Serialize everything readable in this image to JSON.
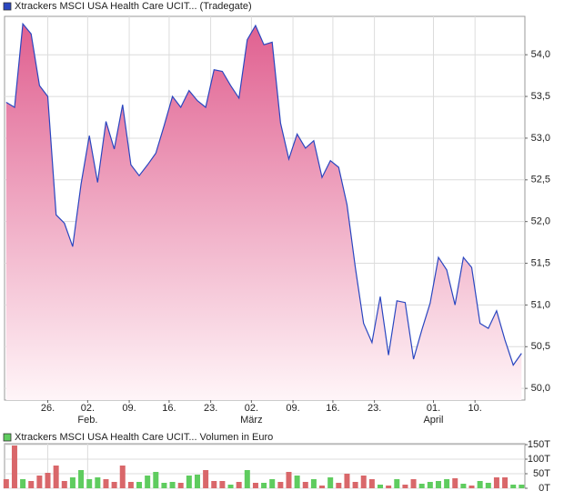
{
  "chart_data": [
    {
      "type": "area",
      "series": [
        {
          "name": "Xtrackers MSCI USA Health Care UCIT... (Tradegate)",
          "color": "#2a46c0",
          "fill_top": "#e06090",
          "fill_bottom": "#fff5f8",
          "values": [
            53.43,
            53.37,
            54.37,
            54.25,
            53.63,
            53.5,
            52.08,
            51.98,
            51.7,
            52.45,
            53.03,
            52.47,
            53.2,
            52.87,
            53.4,
            52.68,
            52.55,
            52.68,
            52.82,
            53.15,
            53.5,
            53.37,
            53.57,
            53.45,
            53.37,
            53.82,
            53.8,
            53.63,
            53.48,
            54.18,
            54.35,
            54.12,
            54.15,
            53.18,
            52.75,
            53.05,
            52.88,
            52.97,
            52.53,
            52.73,
            52.65,
            52.2,
            51.45,
            50.78,
            50.55,
            51.1,
            50.4,
            51.05,
            51.03,
            50.35,
            50.7,
            51.02,
            51.57,
            51.42,
            51.0,
            51.57,
            51.45,
            50.78,
            50.72,
            50.93,
            50.58,
            50.28,
            50.42
          ]
        }
      ],
      "x": [
        0,
        1,
        2,
        3,
        4,
        5,
        6,
        7,
        8,
        9,
        10,
        11,
        12,
        13,
        14,
        15,
        16,
        17,
        18,
        19,
        20,
        21,
        22,
        23,
        24,
        25,
        26,
        27,
        28,
        29,
        30,
        31,
        32,
        33,
        34,
        35,
        36,
        37,
        38,
        39,
        40,
        41,
        42,
        43,
        44,
        45,
        46,
        47,
        48,
        49,
        50,
        51,
        52,
        53,
        54,
        55,
        56,
        57,
        58,
        59,
        60,
        61,
        62
      ],
      "xlim": [
        -0.2,
        62.4
      ],
      "xticks": [
        {
          "value": 5,
          "label": "26."
        },
        {
          "value": 9.8,
          "label": "02."
        },
        {
          "value": 14.8,
          "label": "09."
        },
        {
          "value": 19.6,
          "label": "16."
        },
        {
          "value": 24.6,
          "label": "23."
        },
        {
          "value": 29.5,
          "label": "02."
        },
        {
          "value": 34.5,
          "label": "09."
        },
        {
          "value": 39.3,
          "label": "16."
        },
        {
          "value": 44.3,
          "label": "23."
        },
        {
          "value": 51.4,
          "label": "01."
        },
        {
          "value": 56.4,
          "label": "10."
        }
      ],
      "month_labels": [
        {
          "value": 9.8,
          "label": "Feb."
        },
        {
          "value": 29.5,
          "label": "März"
        },
        {
          "value": 51.4,
          "label": "April"
        }
      ],
      "ylim": [
        49.86,
        54.46
      ],
      "yticks": [
        {
          "value": 50,
          "label": "50,0"
        },
        {
          "value": 50.5,
          "label": "50,5"
        },
        {
          "value": 51,
          "label": "51,0"
        },
        {
          "value": 51.5,
          "label": "51,5"
        },
        {
          "value": 52,
          "label": "52,0"
        },
        {
          "value": 52.5,
          "label": "52,5"
        },
        {
          "value": 53,
          "label": "53,0"
        },
        {
          "value": 53.5,
          "label": "53,5"
        },
        {
          "value": 54,
          "label": "54,0"
        }
      ],
      "grid": true
    },
    {
      "type": "bar",
      "series": [
        {
          "name": "Xtrackers MSCI USA Health Care UCIT... Volumen in Euro",
          "color": "#5fcc5f",
          "values": [
            31250,
            146875,
            31250,
            25000,
            43750,
            53125,
            78125,
            25000,
            37500,
            62500,
            31250,
            37500,
            31250,
            21875,
            78125,
            21875,
            21875,
            43750,
            56250,
            18750,
            21875,
            18750,
            43750,
            46875,
            62500,
            25000,
            25000,
            12500,
            21875,
            62500,
            18750,
            18750,
            31250,
            21875,
            56250,
            43750,
            21875,
            31250,
            9375,
            37500,
            18750,
            50000,
            21875,
            43750,
            31250,
            12500,
            9375,
            31250,
            12500,
            31250,
            15625,
            21875,
            25000,
            31250,
            34375,
            15625,
            9375,
            25000,
            18750,
            37500,
            37500,
            12500,
            12500
          ],
          "bar_colors": [
            "#d9676a",
            "#d9676a",
            "#5fcc5f",
            "#d9676a",
            "#d9676a",
            "#d9676a",
            "#d9676a",
            "#d9676a",
            "#5fcc5f",
            "#5fcc5f",
            "#5fcc5f",
            "#5fcc5f",
            "#d9676a",
            "#d9676a",
            "#d9676a",
            "#d9676a",
            "#5fcc5f",
            "#5fcc5f",
            "#5fcc5f",
            "#5fcc5f",
            "#5fcc5f",
            "#d9676a",
            "#5fcc5f",
            "#5fcc5f",
            "#d9676a",
            "#d9676a",
            "#d9676a",
            "#5fcc5f",
            "#d9676a",
            "#5fcc5f",
            "#d9676a",
            "#5fcc5f",
            "#5fcc5f",
            "#d9676a",
            "#d9676a",
            "#5fcc5f",
            "#d9676a",
            "#5fcc5f",
            "#d9676a",
            "#5fcc5f",
            "#d9676a",
            "#d9676a",
            "#d9676a",
            "#d9676a",
            "#d9676a",
            "#5fcc5f",
            "#d9676a",
            "#5fcc5f",
            "#d9676a",
            "#d9676a",
            "#5fcc5f",
            "#5fcc5f",
            "#5fcc5f",
            "#5fcc5f",
            "#d9676a",
            "#5fcc5f",
            "#d9676a",
            "#5fcc5f",
            "#5fcc5f",
            "#d9676a",
            "#d9676a",
            "#5fcc5f",
            "#5fcc5f"
          ]
        }
      ],
      "x": [
        0,
        1,
        2,
        3,
        4,
        5,
        6,
        7,
        8,
        9,
        10,
        11,
        12,
        13,
        14,
        15,
        16,
        17,
        18,
        19,
        20,
        21,
        22,
        23,
        24,
        25,
        26,
        27,
        28,
        29,
        30,
        31,
        32,
        33,
        34,
        35,
        36,
        37,
        38,
        39,
        40,
        41,
        42,
        43,
        44,
        45,
        46,
        47,
        48,
        49,
        50,
        51,
        52,
        53,
        54,
        55,
        56,
        57,
        58,
        59,
        60,
        61,
        62
      ],
      "xlim": [
        -0.2,
        62.4
      ],
      "xticks": [
        {
          "value": 5,
          "label": ""
        },
        {
          "value": 9.8,
          "label": ""
        }
      ],
      "ylim": [
        0,
        153125
      ],
      "yticks": [
        {
          "value": 0,
          "label": "0T"
        },
        {
          "value": 50000,
          "label": "50T"
        },
        {
          "value": 100000,
          "label": "100T"
        },
        {
          "value": 150000,
          "label": "150T"
        }
      ],
      "grid": true
    }
  ]
}
